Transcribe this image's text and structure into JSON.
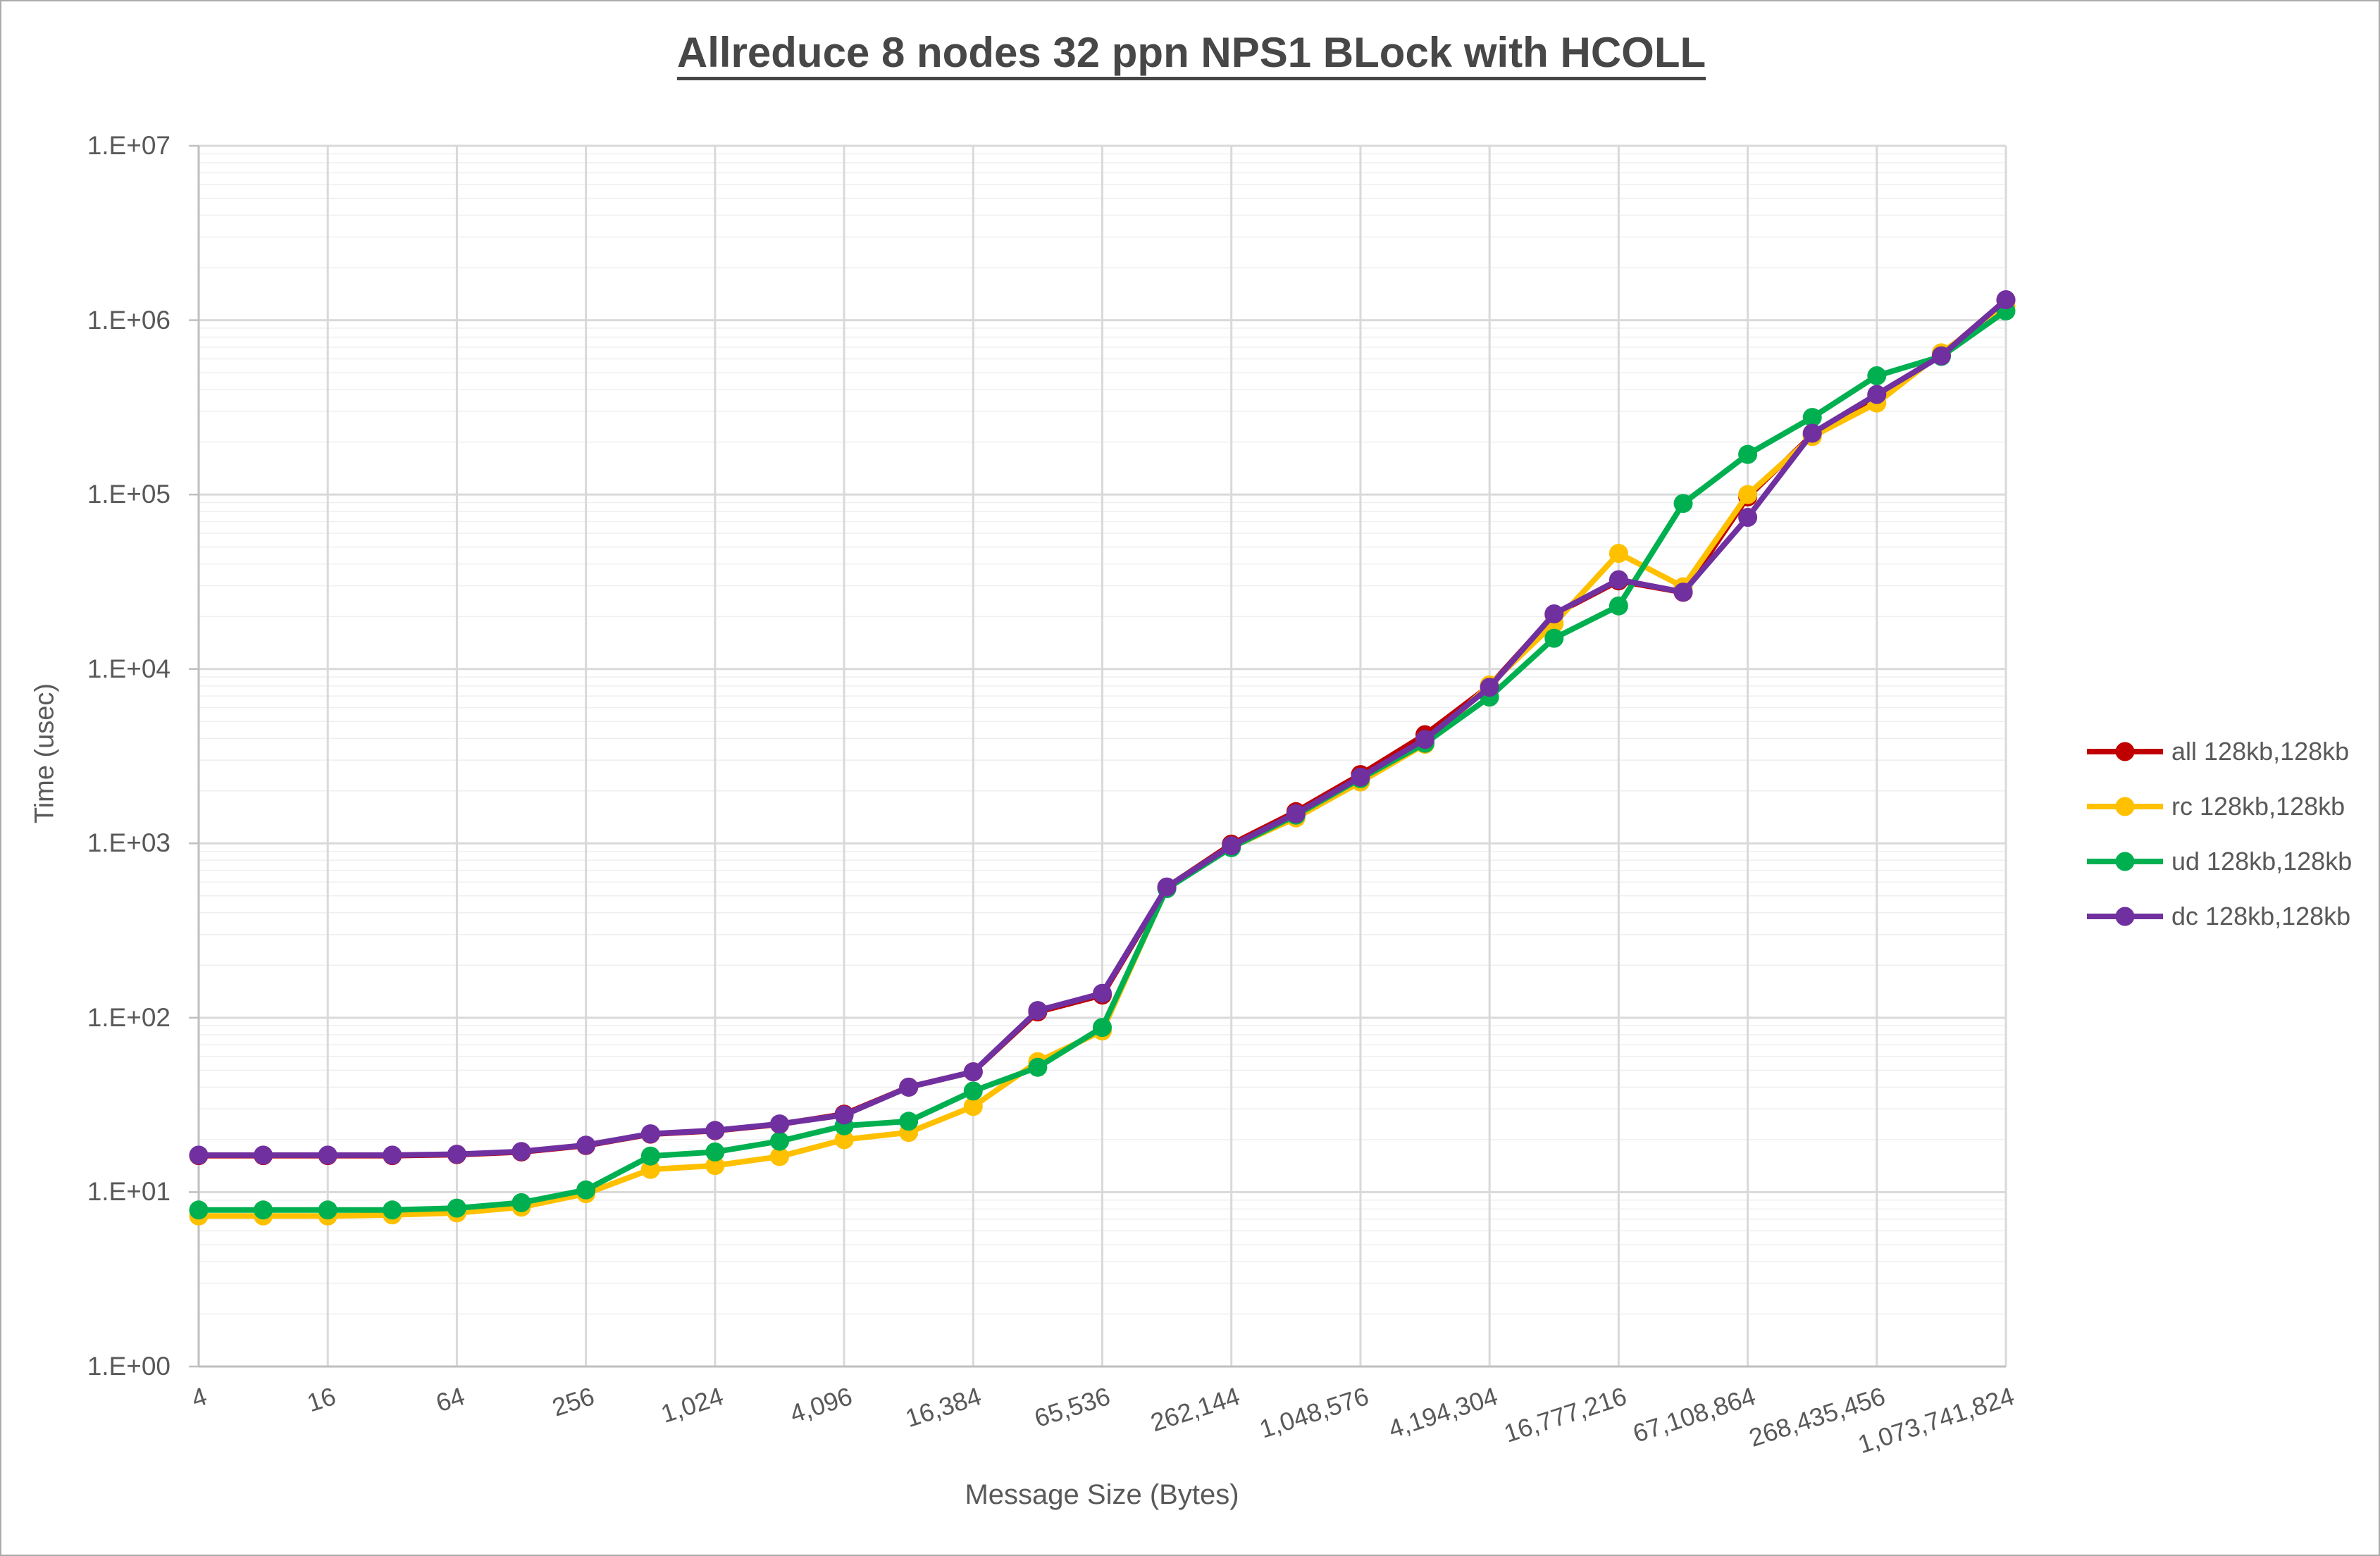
{
  "window": {
    "background": "#FFFFFF",
    "border_color": "#ABABAB"
  },
  "title": "Allreduce 8 nodes 32 ppn NPS1 BLock with HCOLL",
  "chart_data": {
    "type": "line",
    "title": "Allreduce 8 nodes 32 ppn NPS1 BLock with HCOLL",
    "xlabel": "Message Size (Bytes)",
    "ylabel": "Time (usec)",
    "legend_position": "right",
    "text_color": "#595959",
    "grid": {
      "major": true,
      "minor": true,
      "major_color": "#D9D9D9",
      "minor_color": "#EFEFEF",
      "axis_color": "#BFBFBF"
    },
    "x_values": [
      4,
      8,
      16,
      32,
      64,
      128,
      256,
      512,
      1024,
      2048,
      4096,
      8192,
      16384,
      32768,
      65536,
      131072,
      262144,
      524288,
      1048576,
      2097152,
      4194304,
      8388608,
      16777216,
      33554432,
      67108864,
      134217728,
      268435456,
      536870912,
      1073741824
    ],
    "x_tick_labels": [
      "4",
      "16",
      "64",
      "256",
      "1,024",
      "4,096",
      "16,384",
      "65,536",
      "262,144",
      "1,048,576",
      "4,194,304",
      "16,777,216",
      "67,108,864",
      "268,435,456",
      "1,073,741,824"
    ],
    "y_axis": {
      "scale": "log10",
      "min": 1,
      "max": 10000000,
      "tick_labels": [
        "1.E+00",
        "1.E+01",
        "1.E+02",
        "1.E+03",
        "1.E+04",
        "1.E+05",
        "1.E+06",
        "1.E+07"
      ]
    },
    "series": [
      {
        "id": "all",
        "name": "all 128kb,128kb",
        "color": "#C00000",
        "values": [
          16.2,
          16.2,
          16.2,
          16.2,
          16.4,
          17,
          18.5,
          21.5,
          22.5,
          24.5,
          28,
          40,
          49,
          108,
          135,
          560,
          990,
          1520,
          2480,
          4200,
          8000,
          20500,
          32000,
          27500,
          97000,
          220000,
          370000,
          630000,
          1300000
        ]
      },
      {
        "id": "rc",
        "name": "rc 128kb,128kb",
        "color": "#FFC000",
        "values": [
          7.3,
          7.3,
          7.3,
          7.4,
          7.6,
          8.2,
          9.8,
          13.5,
          14.2,
          16,
          20,
          22,
          31,
          56,
          84,
          555,
          950,
          1400,
          2250,
          3700,
          8100,
          18200,
          46000,
          29600,
          100000,
          215000,
          335000,
          650000,
          1200000
        ]
      },
      {
        "id": "ud",
        "name": "ud 128kb,128kb",
        "color": "#00B050",
        "values": [
          7.9,
          7.9,
          7.9,
          7.9,
          8.1,
          8.7,
          10.3,
          16.1,
          17,
          19.6,
          24,
          25.5,
          38,
          52,
          88,
          550,
          945,
          1450,
          2350,
          3750,
          6900,
          15000,
          23000,
          89000,
          170000,
          277000,
          480000,
          620000,
          1130000
        ]
      },
      {
        "id": "dc",
        "name": "dc 128kb,128kb",
        "color": "#7030A0",
        "values": [
          16.3,
          16.3,
          16.3,
          16.3,
          16.5,
          17.1,
          18.6,
          21.6,
          22.6,
          24.6,
          27.7,
          40,
          49,
          110,
          138,
          562,
          970,
          1480,
          2400,
          3950,
          7850,
          20700,
          32500,
          27600,
          74000,
          225000,
          375000,
          625000,
          1310000
        ]
      }
    ]
  }
}
